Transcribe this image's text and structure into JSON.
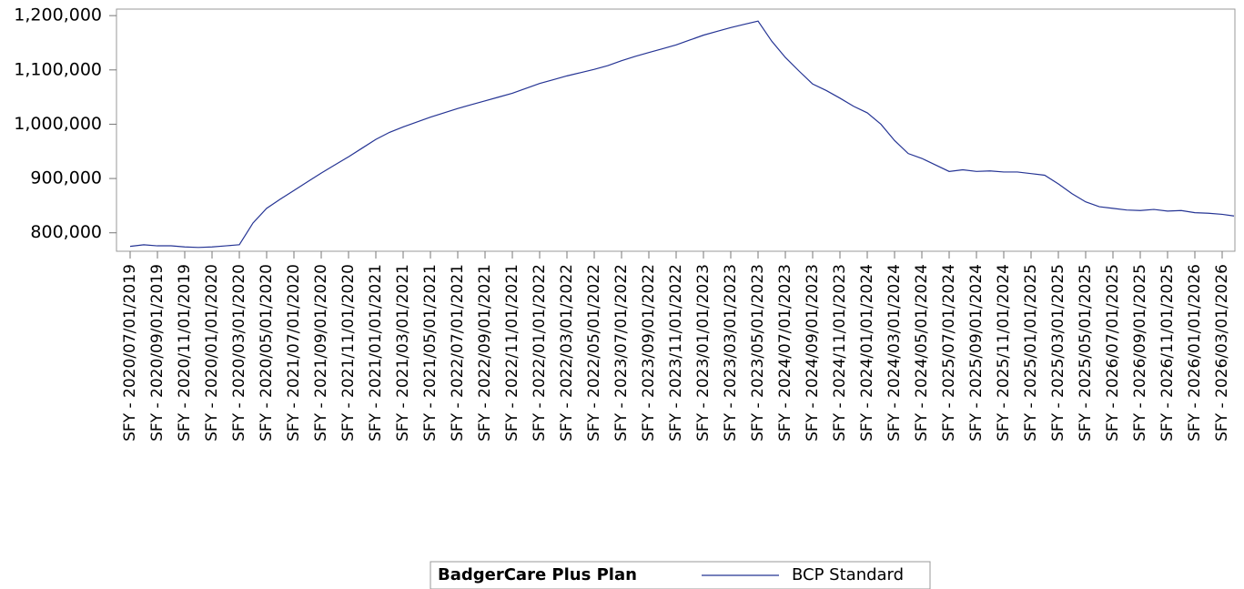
{
  "chart_data": {
    "type": "line",
    "categories": [
      "SFY - 2020/07/01/2019",
      null,
      "SFY - 2020/09/01/2019",
      null,
      "SFY - 2020/11/01/2019",
      null,
      "SFY - 2020/01/01/2020",
      null,
      "SFY - 2020/03/01/2020",
      null,
      "SFY - 2020/05/01/2020",
      null,
      "SFY - 2021/07/01/2020",
      null,
      "SFY - 2021/09/01/2020",
      null,
      "SFY - 2021/11/01/2020",
      null,
      "SFY - 2021/01/01/2021",
      null,
      "SFY - 2021/03/01/2021",
      null,
      "SFY - 2021/05/01/2021",
      null,
      "SFY - 2022/07/01/2021",
      null,
      "SFY - 2022/09/01/2021",
      null,
      "SFY - 2022/11/01/2021",
      null,
      "SFY - 2022/01/01/2022",
      null,
      "SFY - 2022/03/01/2022",
      null,
      "SFY - 2022/05/01/2022",
      null,
      "SFY - 2023/07/01/2022",
      null,
      "SFY - 2023/09/01/2022",
      null,
      "SFY - 2023/11/01/2022",
      null,
      "SFY - 2023/01/01/2023",
      null,
      "SFY - 2023/03/01/2023",
      null,
      "SFY - 2023/05/01/2023",
      null,
      "SFY - 2024/07/01/2023",
      null,
      "SFY - 2024/09/01/2023",
      null,
      "SFY - 2024/11/01/2023",
      null,
      "SFY - 2024/01/01/2024",
      null,
      "SFY - 2024/03/01/2024",
      null,
      "SFY - 2024/05/01/2024",
      null,
      "SFY - 2025/07/01/2024",
      null,
      "SFY - 2025/09/01/2024",
      null,
      "SFY - 2025/11/01/2024",
      null,
      "SFY - 2025/01/01/2025",
      null,
      "SFY - 2025/03/01/2025",
      null,
      "SFY - 2025/05/01/2025",
      null,
      "SFY - 2026/07/01/2025",
      null,
      "SFY - 2026/09/01/2025",
      null,
      "SFY - 2026/11/01/2025",
      null,
      "SFY - 2026/01/01/2026",
      null,
      "SFY - 2026/03/01/2026",
      null
    ],
    "series": [
      {
        "name": "BCP Standard",
        "color": "#253494",
        "values": [
          775000,
          778000,
          776000,
          776000,
          774000,
          773000,
          774000,
          776000,
          778000,
          818000,
          845000,
          862000,
          878000,
          894000,
          910000,
          925000,
          940000,
          956000,
          972000,
          985000,
          995000,
          1004000,
          1013000,
          1021000,
          1029000,
          1036000,
          1043000,
          1050000,
          1057000,
          1066000,
          1075000,
          1082000,
          1089000,
          1095000,
          1101000,
          1108000,
          1117000,
          1125000,
          1132000,
          1139000,
          1146000,
          1155000,
          1164000,
          1171000,
          1178000,
          1184000,
          1190000,
          1153000,
          1123000,
          1098000,
          1074000,
          1062000,
          1048000,
          1033000,
          1021000,
          1000000,
          970000,
          946000,
          937000,
          925000,
          913000,
          916000,
          913000,
          914000,
          912000,
          912000,
          909000,
          906000,
          890000,
          872000,
          857000,
          848000,
          845000,
          842000,
          841000,
          843000,
          840000,
          841000,
          837000,
          836000,
          834000,
          831000
        ]
      }
    ],
    "ylim": [
      766000,
      1212000
    ],
    "yticks": [
      {
        "value": 800000,
        "label": "800,000"
      },
      {
        "value": 900000,
        "label": "900,000"
      },
      {
        "value": 1000000,
        "label": "1,000,000"
      },
      {
        "value": 1100000,
        "label": "1,100,000"
      },
      {
        "value": 1200000,
        "label": "1,200,000"
      }
    ],
    "legend_title": "BadgerCare Plus Plan",
    "legend": "bottom"
  }
}
